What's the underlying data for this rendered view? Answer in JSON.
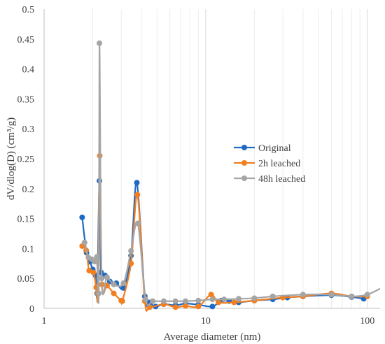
{
  "chart_data": {
    "type": "line",
    "xscale": "log",
    "xlim": [
      1,
      120
    ],
    "ylim": [
      0,
      0.5
    ],
    "xlabel": "Average diameter (nm)",
    "ylabel": "dV/dlog(D) (cm³/g)",
    "x_ticks": [
      1,
      10,
      100
    ],
    "x_tick_labels": [
      "1",
      "10",
      "100"
    ],
    "y_ticks": [
      0,
      0.05,
      0.1,
      0.15,
      0.2,
      0.25,
      0.3,
      0.35,
      0.4,
      0.45,
      0.5
    ],
    "y_tick_labels": [
      "0",
      "0.05",
      "0.1",
      "0.15",
      "0.2",
      "0.25",
      "0.3",
      "0.35",
      "0.4",
      "0.45",
      "0.5"
    ],
    "grid": "vertical log gridlines",
    "legend": "right-center",
    "series": [
      {
        "name": "Original",
        "color": "#1f6bc4",
        "points": [
          [
            1.72,
            0.152
          ],
          [
            1.83,
            0.093
          ],
          [
            1.92,
            0.078
          ],
          [
            2.0,
            0.065
          ],
          [
            2.08,
            0.055
          ],
          [
            2.13,
            0.025
          ],
          [
            2.2,
            0.213
          ],
          [
            2.25,
            0.06
          ],
          [
            2.38,
            0.055
          ],
          [
            2.55,
            0.045
          ],
          [
            2.8,
            0.042
          ],
          [
            3.1,
            0.034
          ],
          [
            3.45,
            0.088
          ],
          [
            3.75,
            0.21
          ],
          [
            4.2,
            0.02
          ],
          [
            4.5,
            0.01
          ],
          [
            4.9,
            0.003
          ],
          [
            5.5,
            0.007
          ],
          [
            6.5,
            0.005
          ],
          [
            7.5,
            0.008
          ],
          [
            9.0,
            0.006
          ],
          [
            11.0,
            0.003
          ],
          [
            12.5,
            0.013
          ],
          [
            14.0,
            0.012
          ],
          [
            16.0,
            0.01
          ],
          [
            20.0,
            0.013
          ],
          [
            26.0,
            0.015
          ],
          [
            32.0,
            0.018
          ],
          [
            40.0,
            0.02
          ],
          [
            60.0,
            0.022
          ],
          [
            80.0,
            0.019
          ],
          [
            95.0,
            0.016
          ]
        ]
      },
      {
        "name": "2h leached",
        "color": "#f07f21",
        "points": [
          [
            1.72,
            0.104
          ],
          [
            1.82,
            0.097
          ],
          [
            1.9,
            0.063
          ],
          [
            2.02,
            0.06
          ],
          [
            2.1,
            0.035
          ],
          [
            2.15,
            0.025
          ],
          [
            2.21,
            0.255
          ],
          [
            2.28,
            0.04
          ],
          [
            2.45,
            0.038
          ],
          [
            2.7,
            0.025
          ],
          [
            3.0,
            0.013
          ],
          [
            3.05,
            0.012
          ],
          [
            3.45,
            0.075
          ],
          [
            3.78,
            0.19
          ],
          [
            4.2,
            0.012
          ],
          [
            4.5,
            0.002
          ],
          [
            5.5,
            0.007
          ],
          [
            6.5,
            0.002
          ],
          [
            7.5,
            0.004
          ],
          [
            9.0,
            0.003
          ],
          [
            10.8,
            0.023
          ],
          [
            12.0,
            0.01
          ],
          [
            15.0,
            0.01
          ],
          [
            20.0,
            0.013
          ],
          [
            30.0,
            0.018
          ],
          [
            40.0,
            0.02
          ],
          [
            60.0,
            0.025
          ],
          [
            80.0,
            0.02
          ],
          [
            100.0,
            0.02
          ]
        ]
      },
      {
        "name": "48h leached",
        "color": "#a5a5a5",
        "points": [
          [
            1.78,
            0.11
          ],
          [
            1.88,
            0.085
          ],
          [
            1.97,
            0.082
          ],
          [
            2.06,
            0.078
          ],
          [
            2.12,
            0.086
          ],
          [
            2.18,
            0.025
          ],
          [
            2.2,
            0.443
          ],
          [
            2.27,
            0.05
          ],
          [
            2.45,
            0.052
          ],
          [
            2.7,
            0.04
          ],
          [
            3.1,
            0.042
          ],
          [
            3.45,
            0.096
          ],
          [
            3.8,
            0.142
          ],
          [
            4.25,
            0.015
          ],
          [
            4.7,
            0.012
          ],
          [
            5.5,
            0.012
          ],
          [
            6.5,
            0.012
          ],
          [
            7.5,
            0.012
          ],
          [
            9.0,
            0.013
          ],
          [
            11.0,
            0.015
          ],
          [
            13.0,
            0.015
          ],
          [
            16.0,
            0.016
          ],
          [
            20.0,
            0.017
          ],
          [
            26.0,
            0.02
          ],
          [
            40.0,
            0.023
          ],
          [
            60.0,
            0.023
          ],
          [
            80.0,
            0.02
          ],
          [
            100.0,
            0.023
          ],
          [
            120.0,
            0.033
          ]
        ]
      }
    ]
  }
}
